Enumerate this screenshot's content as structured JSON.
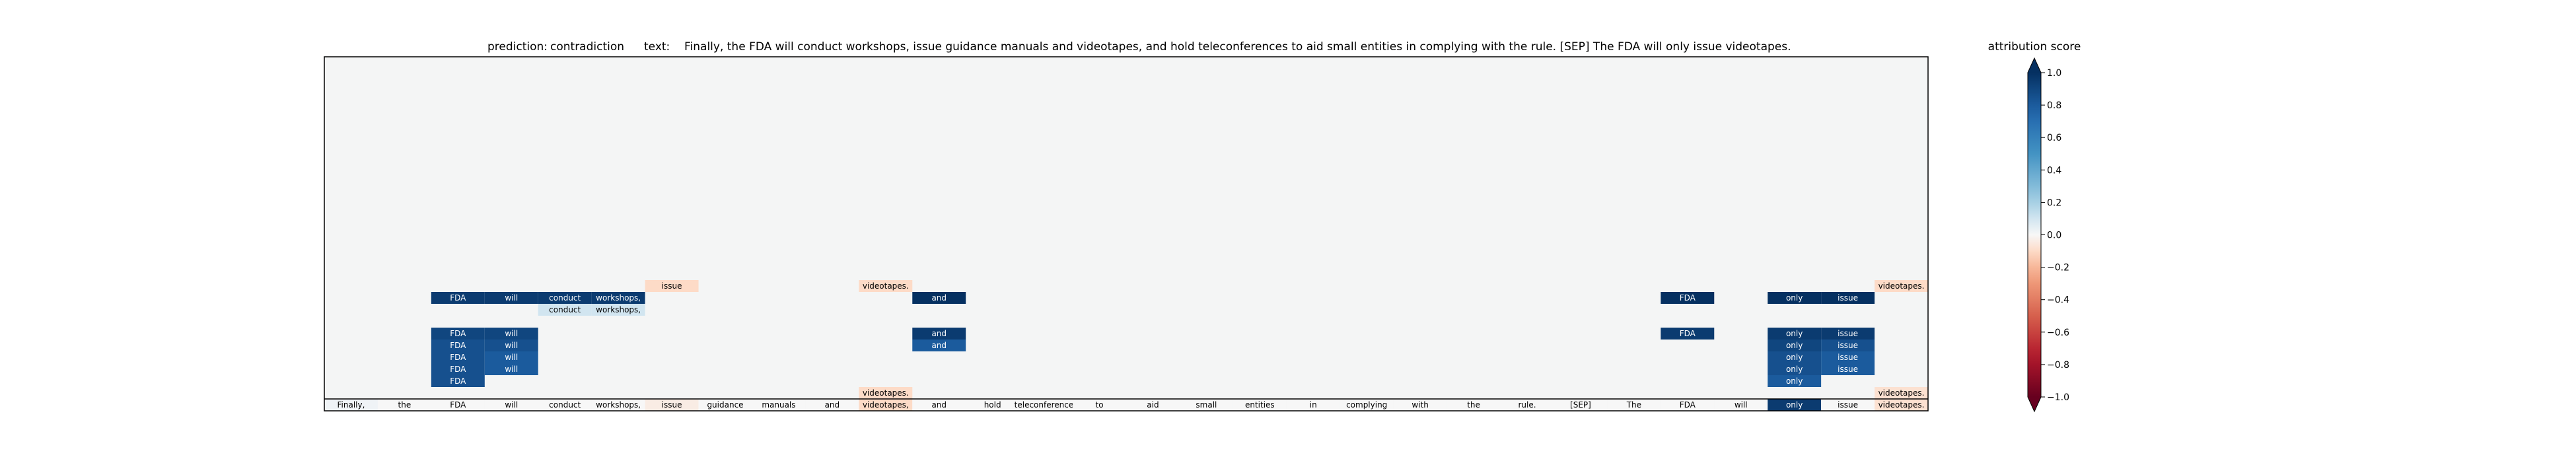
{
  "header": {
    "prediction_label": "prediction:",
    "prediction_value": "contradiction",
    "text_label": "text:",
    "text_value": "Finally, the FDA will conduct workshops, issue guidance manuals and videotapes, and hold teleconferences to aid small entities in complying with the rule. [SEP] The FDA will only issue videotapes."
  },
  "colorbar": {
    "title": "attribution score",
    "ticks": [
      "1.0",
      "0.8",
      "0.6",
      "0.4",
      "0.2",
      "0.0",
      "−0.2",
      "−0.4",
      "−0.6",
      "−0.8",
      "−1.0"
    ],
    "range": [
      -1.0,
      1.0
    ],
    "colormap": "RdBu",
    "extend": "both"
  },
  "chart_data": {
    "type": "heatmap",
    "value_range": [
      -1.0,
      1.0
    ],
    "colormap": "RdBu",
    "background_color": "#f4f5f5",
    "tokens": [
      "Finally,",
      "the",
      "FDA",
      "will",
      "conduct",
      "workshops,",
      "issue",
      "guidance",
      "manuals",
      "and",
      "videotapes,",
      "and",
      "hold",
      "teleconferences",
      "to",
      "aid",
      "small",
      "entities",
      "in",
      "complying",
      "with",
      "the",
      "rule.",
      "[SEP]",
      "The",
      "FDA",
      "will",
      "only",
      "issue",
      "videotapes."
    ],
    "base_row_scores": [
      0.02,
      0.0,
      0.0,
      0.0,
      0.0,
      0.0,
      -0.04,
      0.0,
      0.0,
      0.0,
      -0.1,
      0.0,
      0.0,
      0.0,
      0.0,
      0.0,
      0.0,
      0.0,
      0.0,
      0.0,
      0.0,
      0.0,
      0.0,
      0.0,
      0.0,
      0.0,
      0.0,
      0.95,
      0.0,
      -0.08
    ],
    "rows": [
      {
        "row": 1,
        "cells": [
          {
            "col": 10,
            "token": "videotapes.",
            "score": -0.1
          },
          {
            "col": 29,
            "token": "videotapes.",
            "score": -0.08
          }
        ]
      },
      {
        "row": 2,
        "cells": [
          {
            "col": 2,
            "token": "FDA",
            "score": 0.85
          },
          {
            "col": 27,
            "token": "only",
            "score": 0.8
          }
        ]
      },
      {
        "row": 3,
        "cells": [
          {
            "col": 2,
            "token": "FDA",
            "score": 0.85
          },
          {
            "col": 3,
            "token": "will",
            "score": 0.8
          },
          {
            "col": 27,
            "token": "only",
            "score": 0.85
          },
          {
            "col": 28,
            "token": "issue",
            "score": 0.8
          }
        ]
      },
      {
        "row": 4,
        "cells": [
          {
            "col": 2,
            "token": "FDA",
            "score": 0.85
          },
          {
            "col": 3,
            "token": "will",
            "score": 0.8
          },
          {
            "col": 27,
            "token": "only",
            "score": 0.85
          },
          {
            "col": 28,
            "token": "issue",
            "score": 0.8
          }
        ]
      },
      {
        "row": 5,
        "cells": [
          {
            "col": 2,
            "token": "FDA",
            "score": 0.85
          },
          {
            "col": 3,
            "token": "will",
            "score": 0.85
          },
          {
            "col": 11,
            "token": "and",
            "score": 0.8
          },
          {
            "col": 27,
            "token": "only",
            "score": 0.9
          },
          {
            "col": 28,
            "token": "issue",
            "score": 0.85
          }
        ]
      },
      {
        "row": 6,
        "cells": [
          {
            "col": 2,
            "token": "FDA",
            "score": 0.9
          },
          {
            "col": 3,
            "token": "will",
            "score": 0.9
          },
          {
            "col": 11,
            "token": "and",
            "score": 0.95
          },
          {
            "col": 25,
            "token": "FDA",
            "score": 0.95
          },
          {
            "col": 27,
            "token": "only",
            "score": 0.95
          },
          {
            "col": 28,
            "token": "issue",
            "score": 0.95
          }
        ]
      },
      {
        "row": 8,
        "cells": [
          {
            "col": 4,
            "token": "conduct",
            "score": 0.1
          },
          {
            "col": 5,
            "token": "workshops,",
            "score": 0.1
          }
        ]
      },
      {
        "row": 9,
        "cells": [
          {
            "col": 2,
            "token": "FDA",
            "score": 0.95
          },
          {
            "col": 3,
            "token": "will",
            "score": 0.95
          },
          {
            "col": 4,
            "token": "conduct",
            "score": 0.95
          },
          {
            "col": 5,
            "token": "workshops,",
            "score": 0.95
          },
          {
            "col": 11,
            "token": "and",
            "score": 1.0
          },
          {
            "col": 25,
            "token": "FDA",
            "score": 1.0
          },
          {
            "col": 27,
            "token": "only",
            "score": 1.0
          },
          {
            "col": 28,
            "token": "issue",
            "score": 1.0
          }
        ]
      },
      {
        "row": 10,
        "cells": [
          {
            "col": 6,
            "token": "issue",
            "score": -0.1
          },
          {
            "col": 10,
            "token": "videotapes.",
            "score": -0.1
          },
          {
            "col": 29,
            "token": "videotapes.",
            "score": -0.1
          }
        ]
      }
    ]
  }
}
